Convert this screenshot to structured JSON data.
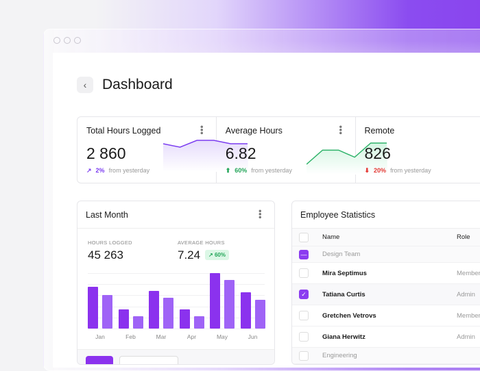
{
  "page": {
    "title": "Dashboard",
    "back_icon": "chevron-left-icon"
  },
  "colors": {
    "accent": "#8b3cf0",
    "accent_light": "#9d5ff5",
    "positive": "#22a558",
    "negative": "#e53935"
  },
  "stats": [
    {
      "title": "Total Hours Logged",
      "value": "2 860",
      "change": "2%",
      "change_icon": "trend-up-icon",
      "change_color": "#7b3cf0",
      "note": "from yesterday",
      "sparkline": [
        2,
        1,
        3,
        3,
        2,
        2
      ]
    },
    {
      "title": "Average Hours",
      "value": "6.82",
      "change": "60%",
      "change_icon": "arrow-up-circle-icon",
      "change_color": "#22a558",
      "note": "from yesterday",
      "sparkline": [
        1,
        3,
        3,
        2,
        4,
        4
      ]
    },
    {
      "title": "Remote",
      "value": "826",
      "change": "20%",
      "change_icon": "arrow-down-circle-icon",
      "change_color": "#e53935",
      "note": "from yesterday"
    }
  ],
  "last_month": {
    "title": "Last Month",
    "hours_label": "HOURS LOGGED",
    "hours_value": "45 263",
    "avg_label": "AVERAGE HOURS",
    "avg_value": "7.24",
    "avg_change": "60%"
  },
  "chart_data": {
    "type": "bar",
    "categories": [
      "Jan",
      "Feb",
      "Mar",
      "Apr",
      "May",
      "Jun"
    ],
    "ylim": [
      0,
      5
    ],
    "grid": true,
    "series": [
      {
        "values": [
          3.75,
          1.75,
          3.4,
          1.75,
          5,
          3.3
        ],
        "color": "#8b32ee"
      },
      {
        "values": [
          3.05,
          1.1,
          2.75,
          1.1,
          4.4,
          2.6
        ],
        "color": "#9f63f6"
      }
    ]
  },
  "employees": {
    "title": "Employee Statistics",
    "columns": [
      "Name",
      "Role"
    ],
    "rows": [
      {
        "group": true,
        "name": "Design Team",
        "checked": "partial"
      },
      {
        "name": "Mira Septimus",
        "role": "Member",
        "checked": false
      },
      {
        "name": "Tatiana Curtis",
        "role": "Admin",
        "checked": true
      },
      {
        "name": "Gretchen Vetrovs",
        "role": "Member",
        "checked": false
      },
      {
        "name": "Giana Herwitz",
        "role": "Admin",
        "checked": false
      },
      {
        "group": true,
        "name": "Engineering",
        "checked": false
      }
    ]
  }
}
